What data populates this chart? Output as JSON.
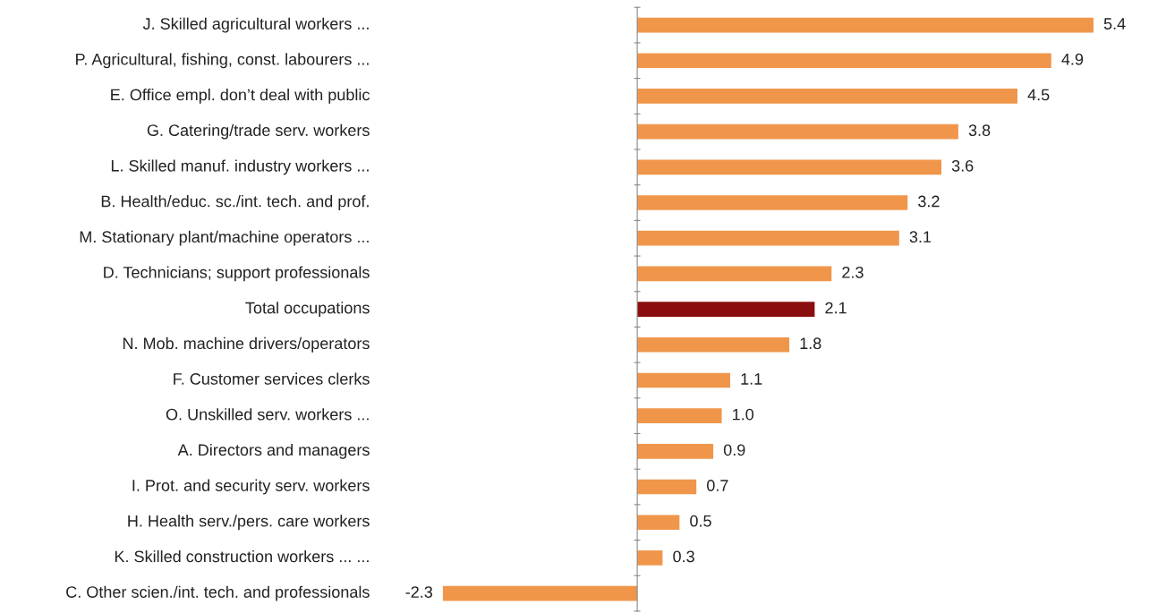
{
  "chart_data": {
    "type": "bar",
    "orientation": "horizontal",
    "grid": false,
    "value_labels": [
      "5.4",
      "4.9",
      "4.5",
      "3.8",
      "3.6",
      "3.2",
      "3.1",
      "2.3",
      "2.1",
      "1.8",
      "1.1",
      "1.0",
      "0.9",
      "0.7",
      "0.5",
      "0.3",
      "-2.3"
    ],
    "categories": [
      "J. Skilled agricultural workers ...",
      "P. Agricultural, fishing, const. labourers ...",
      "E. Office empl. don’t deal with public",
      "G. Catering/trade serv. workers",
      "L. Skilled manuf. industry workers ...",
      "B. Health/educ. sc./int. tech. and prof.",
      "M. Stationary plant/machine operators ...",
      "D. Technicians; support professionals",
      "Total occupations",
      "N. Mob. machine drivers/operators",
      "F. Customer services clerks",
      "O. Unskilled serv. workers ...",
      "A. Directors and managers",
      "I. Prot. and security serv. workers",
      "H. Health serv./pers. care workers",
      "K. Skilled construction workers ... ...",
      "C. Other scien./int. tech. and professionals"
    ],
    "values": [
      5.4,
      4.9,
      4.5,
      3.8,
      3.6,
      3.2,
      3.1,
      2.3,
      2.1,
      1.8,
      1.1,
      1.0,
      0.9,
      0.7,
      0.5,
      0.3,
      -2.3
    ],
    "colors": [
      "#f0964b",
      "#f0964b",
      "#f0964b",
      "#f0964b",
      "#f0964b",
      "#f0964b",
      "#f0964b",
      "#f0964b",
      "#8b0e0e",
      "#f0964b",
      "#f0964b",
      "#f0964b",
      "#f0964b",
      "#f0964b",
      "#f0964b",
      "#f0964b",
      "#f0964b"
    ]
  }
}
